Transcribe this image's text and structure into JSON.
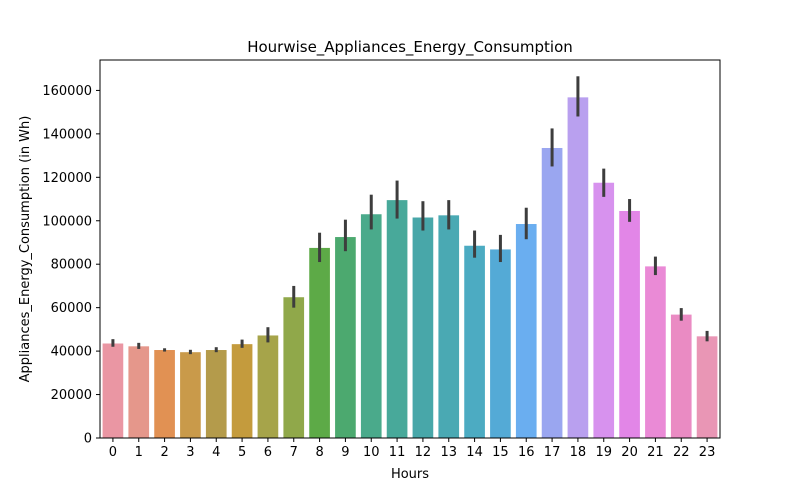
{
  "chart_data": {
    "type": "bar",
    "title": "Hourwise_Appliances_Energy_Consumption",
    "xlabel": "Hours",
    "ylabel": "Appliances_Energy_Consumption (in Wh)",
    "categories": [
      "0",
      "1",
      "2",
      "3",
      "4",
      "5",
      "6",
      "7",
      "8",
      "9",
      "10",
      "11",
      "12",
      "13",
      "14",
      "15",
      "16",
      "17",
      "18",
      "19",
      "20",
      "21",
      "22",
      "23"
    ],
    "values": [
      43500,
      42200,
      40500,
      39500,
      40500,
      43200,
      47200,
      64800,
      87500,
      92500,
      103000,
      109500,
      101500,
      102500,
      88500,
      86800,
      98500,
      133500,
      156800,
      117500,
      104500,
      79000,
      56800,
      46800
    ],
    "error_low": [
      42000,
      41000,
      39800,
      38600,
      39500,
      41500,
      44000,
      60000,
      81000,
      86000,
      96000,
      101000,
      95500,
      96000,
      83000,
      81000,
      91500,
      125000,
      148000,
      111000,
      99500,
      75000,
      54000,
      44500
    ],
    "error_high": [
      45500,
      43800,
      41300,
      40600,
      41800,
      45300,
      51000,
      70000,
      94500,
      100500,
      112000,
      118500,
      109000,
      109500,
      95500,
      93500,
      106000,
      142500,
      166500,
      124000,
      110000,
      83500,
      59800,
      49300
    ],
    "colors": [
      "#ea96a3",
      "#e5978b",
      "#e19153",
      "#c99a4a",
      "#b49b4b",
      "#c49b3d",
      "#a6a44a",
      "#90a84a",
      "#5daa47",
      "#4ca96f",
      "#4aaa8b",
      "#48a99a",
      "#48a7a9",
      "#4aa9b3",
      "#4cabc2",
      "#54aad6",
      "#6aaef0",
      "#9aa6f0",
      "#b9a0ef",
      "#d792ee",
      "#e286e7",
      "#ea8ad6",
      "#ea8bc3",
      "#e996b5"
    ],
    "ylim": [
      0,
      174000
    ],
    "yticks": [
      0,
      20000,
      40000,
      60000,
      80000,
      100000,
      120000,
      140000,
      160000
    ],
    "grid": false,
    "legend": "none"
  }
}
